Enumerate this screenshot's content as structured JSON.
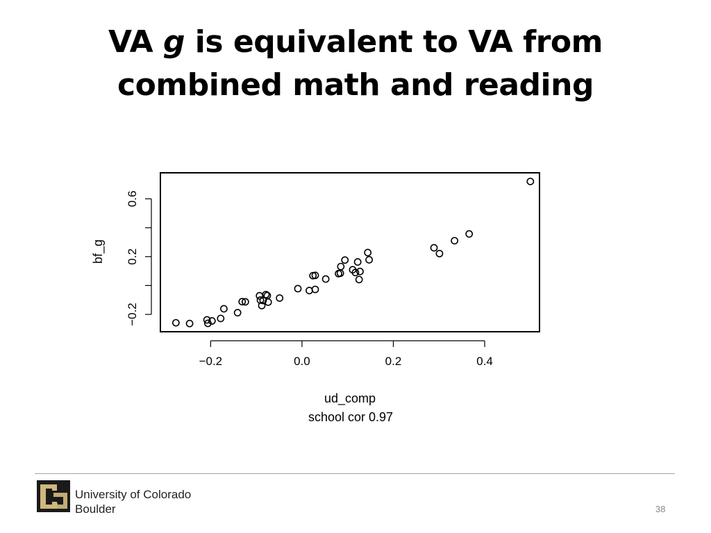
{
  "slide": {
    "title_line1_pre": "VA ",
    "title_line1_italic": "g",
    "title_line1_post": " is equivalent to VA from",
    "title_line2": "combined math and reading"
  },
  "chart_data": {
    "type": "scatter",
    "title": "",
    "xlabel": "ud_comp",
    "xlabel_sub": "school cor 0.97",
    "ylabel": "bf_g",
    "xlim": [
      -0.31,
      0.52
    ],
    "ylim": [
      -0.32,
      0.78
    ],
    "xticks": [
      -0.2,
      0.0,
      0.2,
      0.4
    ],
    "xtick_labels": [
      "−0.2",
      "0.0",
      "0.2",
      "0.4"
    ],
    "yticks": [
      -0.2,
      0.0,
      0.2,
      0.4,
      0.6
    ],
    "ytick_labels": [
      "−0.2",
      "",
      "0.2",
      "",
      "0.6"
    ],
    "grid": false,
    "x": [
      -0.276,
      -0.246,
      -0.208,
      -0.206,
      -0.197,
      -0.178,
      -0.171,
      -0.141,
      -0.131,
      -0.124,
      -0.093,
      -0.091,
      -0.088,
      -0.085,
      -0.079,
      -0.076,
      -0.074,
      -0.049,
      -0.009,
      0.016,
      0.024,
      0.029,
      0.029,
      0.052,
      0.08,
      0.084,
      0.085,
      0.094,
      0.111,
      0.117,
      0.122,
      0.125,
      0.127,
      0.144,
      0.147,
      0.289,
      0.301,
      0.334,
      0.366,
      0.5
    ],
    "y": [
      -0.258,
      -0.263,
      -0.238,
      -0.262,
      -0.245,
      -0.228,
      -0.161,
      -0.188,
      -0.112,
      -0.113,
      -0.071,
      -0.101,
      -0.139,
      -0.104,
      -0.063,
      -0.07,
      -0.115,
      -0.087,
      -0.022,
      -0.035,
      0.068,
      0.07,
      -0.027,
      0.045,
      0.082,
      0.085,
      0.131,
      0.176,
      0.109,
      0.09,
      0.163,
      0.041,
      0.097,
      0.228,
      0.178,
      0.261,
      0.221,
      0.31,
      0.357,
      0.72
    ]
  },
  "footer": {
    "university_line1": "University of Colorado",
    "university_line2": "Boulder",
    "page_number": "38",
    "logo_color": "#cfb87c"
  }
}
